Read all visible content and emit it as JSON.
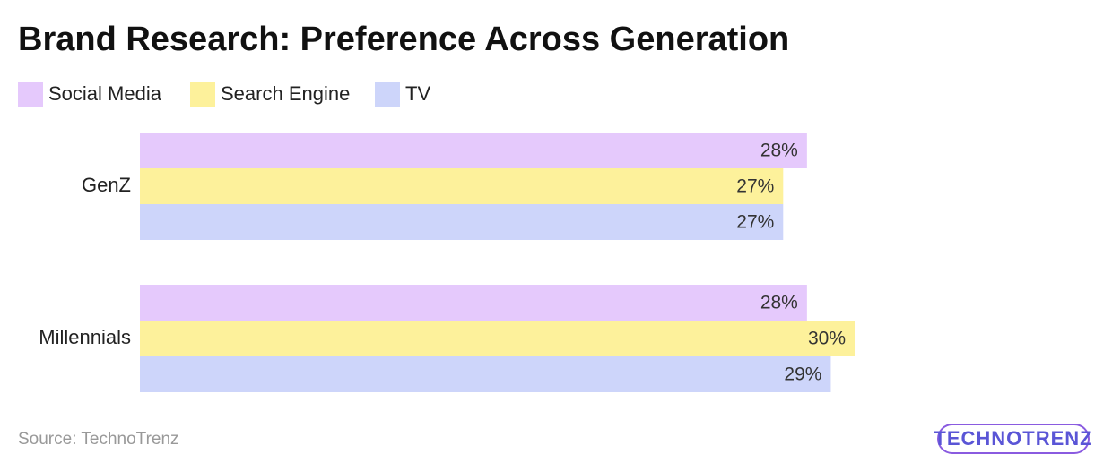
{
  "chart_data": {
    "type": "bar",
    "orientation": "horizontal",
    "title": "Brand Research: Preference Across Generation",
    "categories": [
      "GenZ",
      "Millennials"
    ],
    "series": [
      {
        "name": "Social Media",
        "color": "#e5c9fc",
        "values": [
          28,
          28
        ],
        "value_labels": [
          "28%",
          "28%"
        ]
      },
      {
        "name": "Search Engine",
        "color": "#fdf19b",
        "values": [
          27,
          30
        ],
        "value_labels": [
          "27%",
          "30%"
        ]
      },
      {
        "name": "TV",
        "color": "#cdd5fa",
        "values": [
          27,
          29
        ],
        "value_labels": [
          "27%",
          "29%"
        ]
      }
    ],
    "source": "Source: TechnoTrenz",
    "logo": "TECHNOTRENZ"
  }
}
